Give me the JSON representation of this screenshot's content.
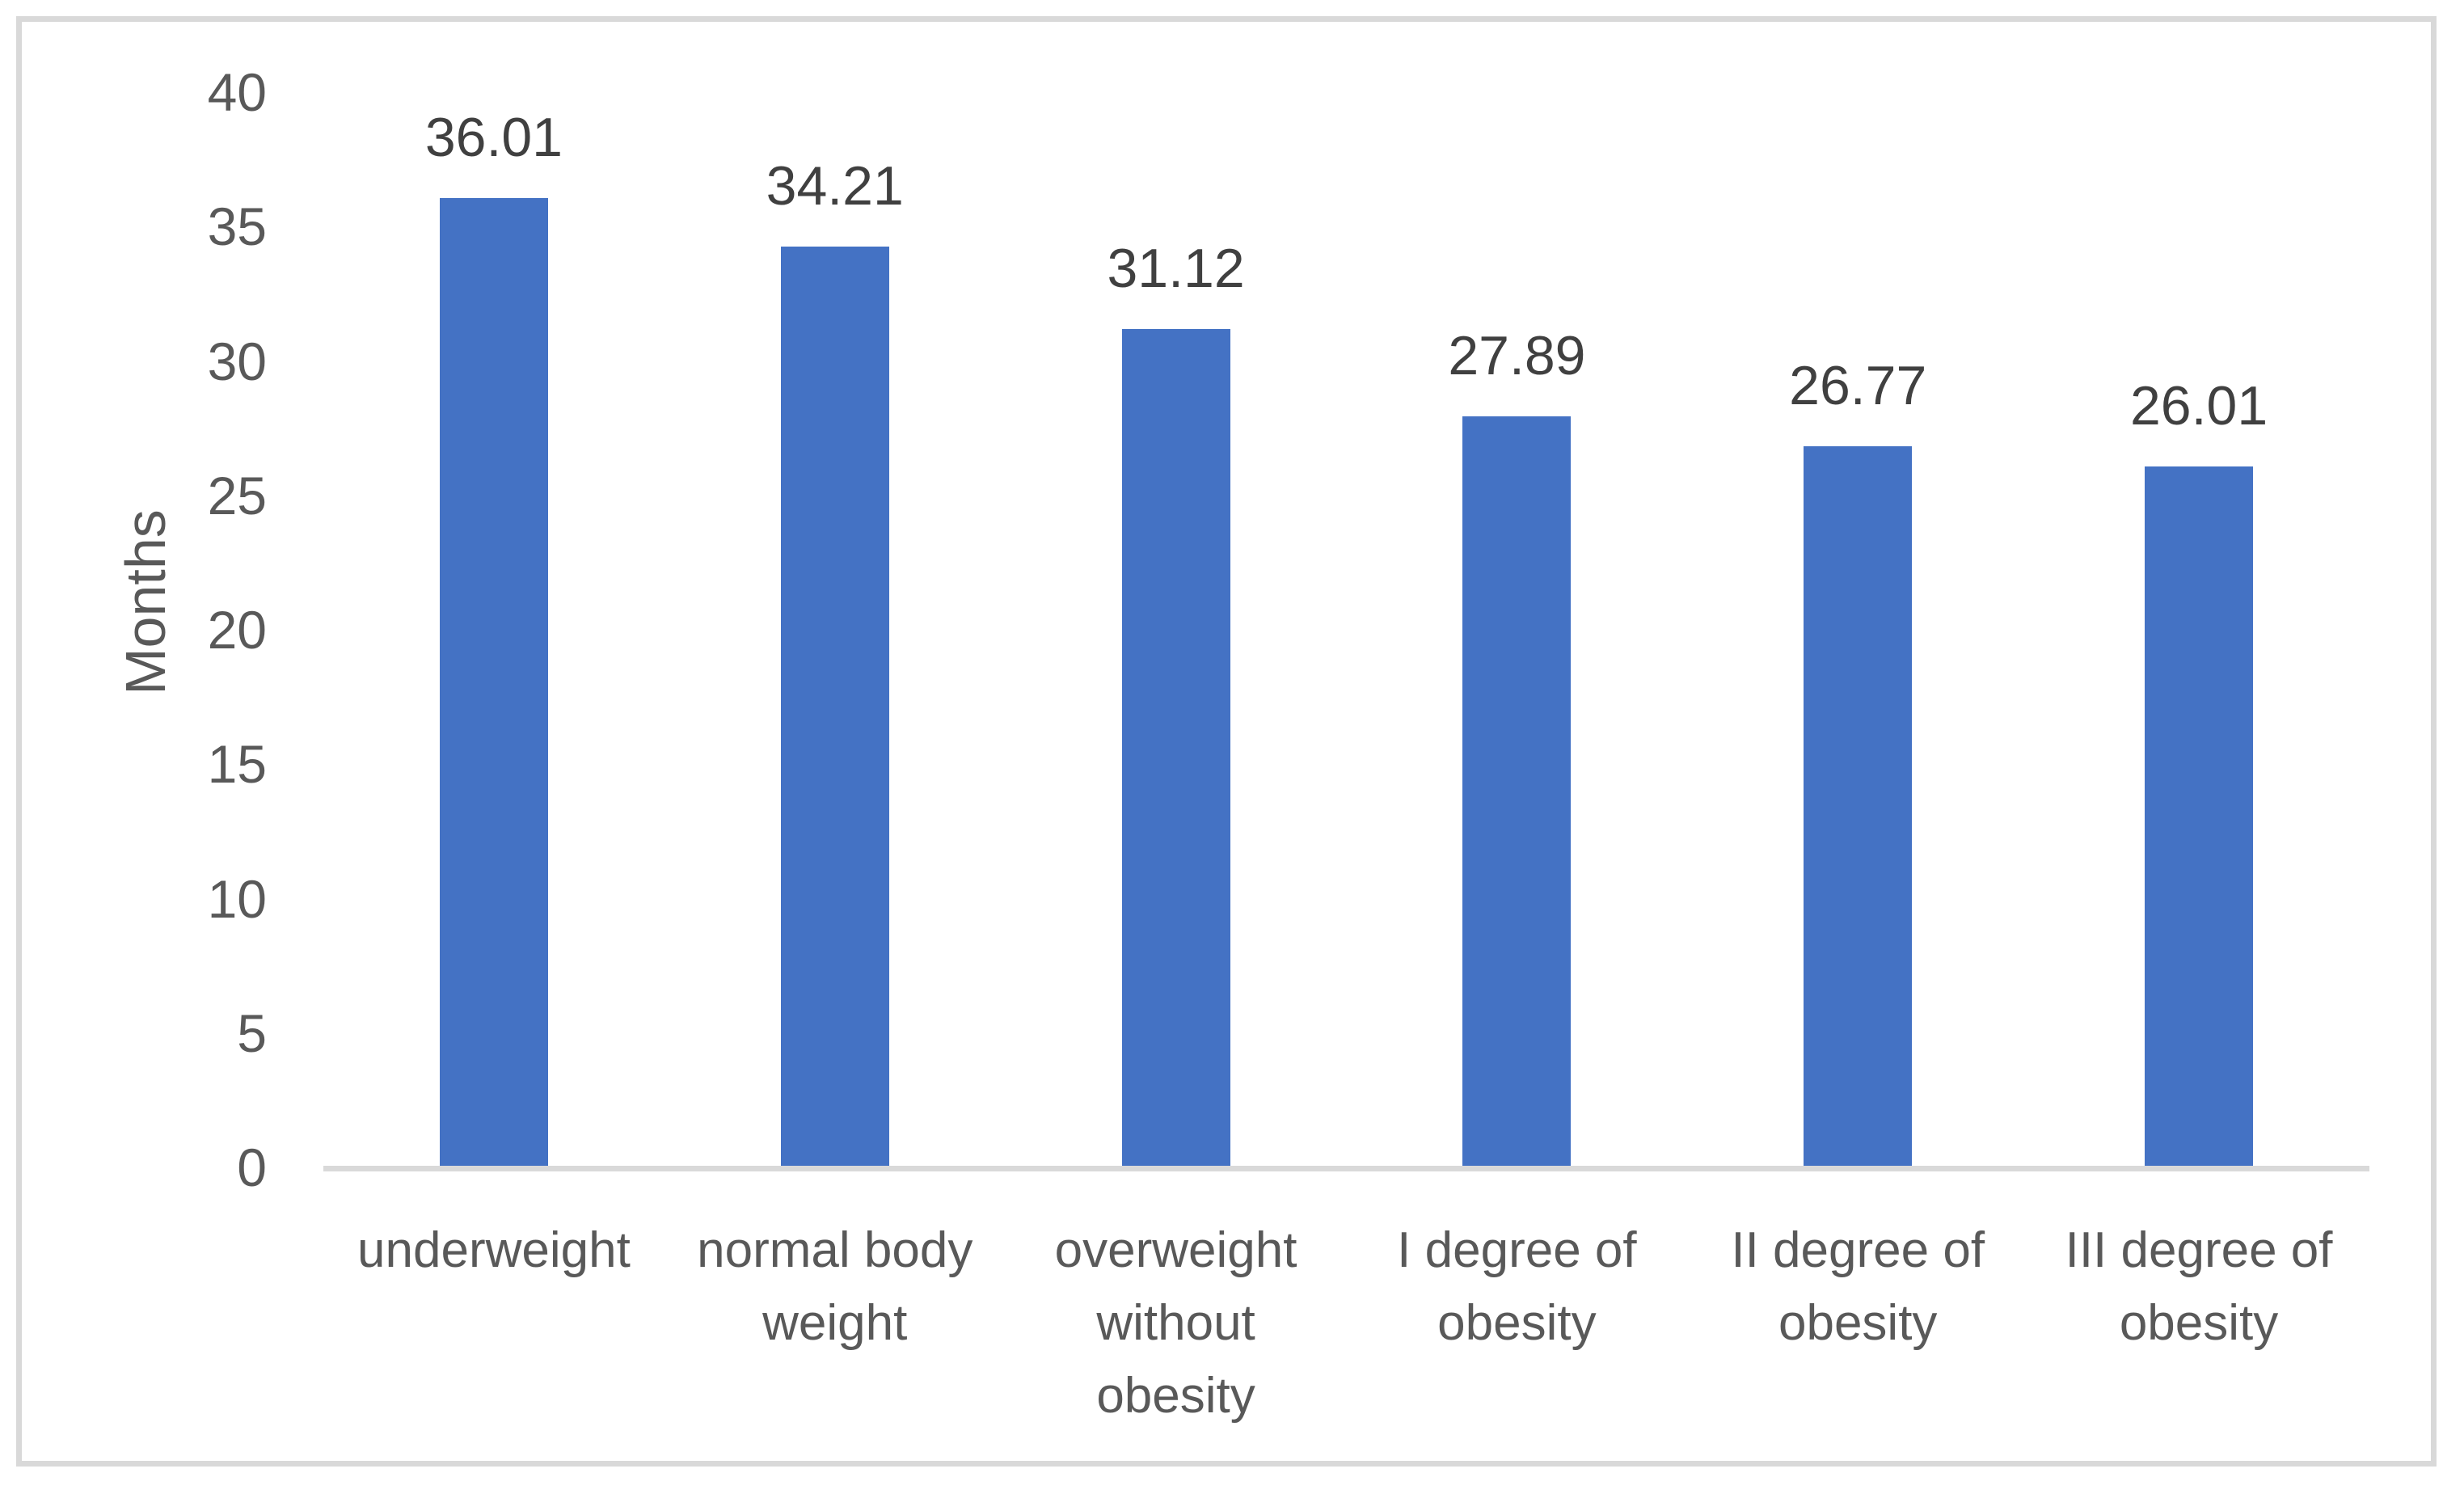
{
  "chart_data": {
    "type": "bar",
    "title": "",
    "xlabel": "",
    "ylabel": "Months",
    "categories": [
      "underweight",
      "normal body weight",
      "overweight without obesity",
      "I degree of obesity",
      "II degree of obesity",
      "III degree of obesity"
    ],
    "values": [
      36.01,
      34.21,
      31.12,
      27.89,
      26.77,
      26.01
    ],
    "data_labels": [
      "36.01",
      "34.21",
      "31.12",
      "27.89",
      "26.77",
      "26.01"
    ],
    "ylim": [
      0,
      40
    ],
    "y_ticks": [
      0,
      5,
      10,
      15,
      20,
      25,
      30,
      35,
      40
    ],
    "grid": false,
    "legend": false,
    "colors": {
      "bar": "#4472C4",
      "axis_line": "#D9D9D9",
      "frame_border": "#D9D9D9",
      "tick_label": "#595959",
      "category_label": "#595959",
      "data_label": "#404040",
      "axis_title": "#595959",
      "background": "#FFFFFF"
    }
  }
}
